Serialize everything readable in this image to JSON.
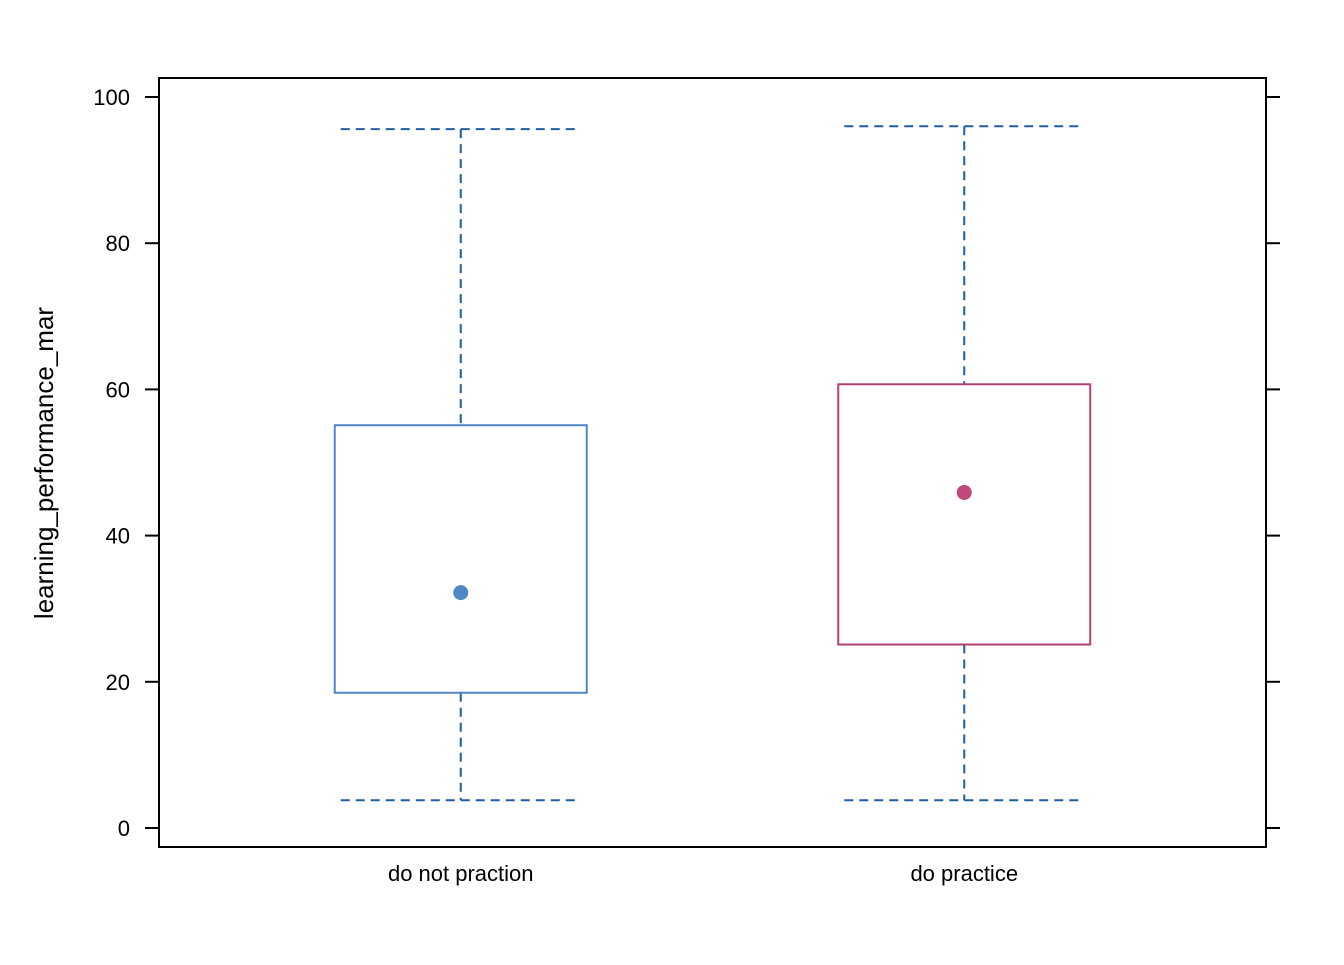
{
  "chart_data": {
    "type": "box",
    "ylabel": "learning_performance_mar",
    "xlabel": "",
    "ylim": [
      -2.6,
      102.6
    ],
    "yticks": [
      0,
      20,
      40,
      60,
      80,
      100
    ],
    "categories": [
      "do not praction",
      "do practice"
    ],
    "grid": false,
    "boxes": [
      {
        "category": "do not praction",
        "whisker_low": 3.8,
        "q1": 18.5,
        "median": 32.2,
        "q3": 55.1,
        "whisker_high": 95.6,
        "box_color": "#4f86c6",
        "point_color": "#4f86c6"
      },
      {
        "category": "do practice",
        "whisker_low": 3.8,
        "q1": 25.1,
        "median": 45.9,
        "q3": 60.7,
        "whisker_high": 96.0,
        "box_color": "#b33f74",
        "point_color": "#c0487a"
      }
    ],
    "whisker_color": "#1f5f9f",
    "frame_color": "#000000"
  }
}
